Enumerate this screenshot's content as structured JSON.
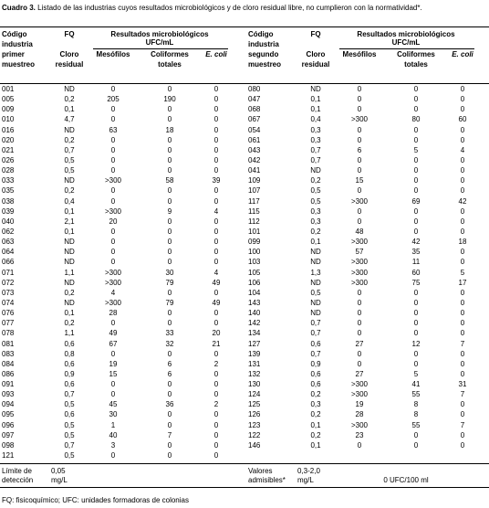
{
  "title": {
    "label": "Cuadro 3.",
    "text": "Listado de las industrias cuyos resultados microbiológicos y de cloro residual libre, no cumplieron con la normatividad*."
  },
  "left": {
    "code_header": [
      "Código",
      "industria",
      "primer",
      "muestreo"
    ],
    "fq": "FQ",
    "results": "Resultados microbiológicos",
    "unit": "UFC/mL",
    "cloro": [
      "Cloro",
      "residual"
    ],
    "meso": "Mesófilos",
    "coli": [
      "Coliformes",
      "totales"
    ],
    "ecoli": "E. coli",
    "rows": [
      [
        "001",
        "ND",
        "0",
        "0",
        "0"
      ],
      [
        "005",
        "0,2",
        "205",
        "190",
        "0"
      ],
      [
        "009",
        "0,1",
        "0",
        "0",
        "0"
      ],
      [
        "010",
        "4,7",
        "0",
        "0",
        "0"
      ],
      [
        "016",
        "ND",
        "63",
        "18",
        "0"
      ],
      [
        "020",
        "0,2",
        "0",
        "0",
        "0"
      ],
      [
        "021",
        "0,7",
        "0",
        "0",
        "0"
      ],
      [
        "026",
        "0,5",
        "0",
        "0",
        "0"
      ],
      [
        "028",
        "0,5",
        "0",
        "0",
        "0"
      ],
      [
        "033",
        "ND",
        ">300",
        "58",
        "39"
      ],
      [
        "035",
        "0,2",
        "0",
        "0",
        "0"
      ],
      [
        "038",
        "0,4",
        "0",
        "0",
        "0"
      ],
      [
        "039",
        "0,1",
        ">300",
        "9",
        "4"
      ],
      [
        "040",
        "2,1",
        "20",
        "0",
        "0"
      ],
      [
        "062",
        "0,1",
        "0",
        "0",
        "0"
      ],
      [
        "063",
        "ND",
        "0",
        "0",
        "0"
      ],
      [
        "064",
        "ND",
        "0",
        "0",
        "0"
      ],
      [
        "066",
        "ND",
        "0",
        "0",
        "0"
      ],
      [
        "071",
        "1,1",
        ">300",
        "30",
        "4"
      ],
      [
        "072",
        "ND",
        ">300",
        "79",
        "49"
      ],
      [
        "073",
        "0,2",
        "4",
        "0",
        "0"
      ],
      [
        "074",
        "ND",
        ">300",
        "79",
        "49"
      ],
      [
        "076",
        "0,1",
        "28",
        "0",
        "0"
      ],
      [
        "077",
        "0,2",
        "0",
        "0",
        "0"
      ],
      [
        "078",
        "1,1",
        "49",
        "33",
        "20"
      ],
      [
        "081",
        "0,6",
        "67",
        "32",
        "21"
      ],
      [
        "083",
        "0,8",
        "0",
        "0",
        "0"
      ],
      [
        "084",
        "0,6",
        "19",
        "6",
        "2"
      ],
      [
        "086",
        "0,9",
        "15",
        "6",
        "0"
      ],
      [
        "091",
        "0,6",
        "0",
        "0",
        "0"
      ],
      [
        "093",
        "0,7",
        "0",
        "0",
        "0"
      ],
      [
        "094",
        "0,5",
        "45",
        "36",
        "2"
      ],
      [
        "095",
        "0,6",
        "30",
        "0",
        "0"
      ],
      [
        "096",
        "0,5",
        "1",
        "0",
        "0"
      ],
      [
        "097",
        "0,5",
        "40",
        "7",
        "0"
      ],
      [
        "098",
        "0,7",
        "3",
        "0",
        "0"
      ],
      [
        "121",
        "0,5",
        "0",
        "0",
        "0"
      ]
    ],
    "footer": {
      "label": [
        "Límite de",
        "detección"
      ],
      "value": [
        "0,05",
        "mg/L"
      ]
    }
  },
  "right": {
    "code_header": [
      "Código",
      "industria",
      "segundo",
      "muestreo"
    ],
    "fq": "FQ",
    "results": "Resultados microbiológicos",
    "unit": "UFC/mL",
    "cloro": [
      "Cloro",
      "residual"
    ],
    "meso": "Mesófilos",
    "coli": [
      "Coliformes",
      "totales"
    ],
    "ecoli": "E. coli",
    "rows": [
      [
        "080",
        "ND",
        "0",
        "0",
        "0"
      ],
      [
        "047",
        "0,1",
        "0",
        "0",
        "0"
      ],
      [
        "068",
        "0,1",
        "0",
        "0",
        "0"
      ],
      [
        "067",
        "0,4",
        ">300",
        "80",
        "60"
      ],
      [
        "054",
        "0,3",
        "0",
        "0",
        "0"
      ],
      [
        "061",
        "0,3",
        "0",
        "0",
        "0"
      ],
      [
        "043",
        "0,7",
        "6",
        "5",
        "4"
      ],
      [
        "042",
        "0,7",
        "0",
        "0",
        "0"
      ],
      [
        "041",
        "ND",
        "0",
        "0",
        "0"
      ],
      [
        "109",
        "0,2",
        "15",
        "0",
        "0"
      ],
      [
        "107",
        "0,5",
        "0",
        "0",
        "0"
      ],
      [
        "117",
        "0,5",
        ">300",
        "69",
        "42"
      ],
      [
        "115",
        "0,3",
        "0",
        "0",
        "0"
      ],
      [
        "112",
        "0,3",
        "0",
        "0",
        "0"
      ],
      [
        "101",
        "0,2",
        "48",
        "0",
        "0"
      ],
      [
        "099",
        "0,1",
        ">300",
        "42",
        "18"
      ],
      [
        "100",
        "ND",
        "57",
        "35",
        "0"
      ],
      [
        "103",
        "ND",
        ">300",
        "11",
        "0"
      ],
      [
        "105",
        "1,3",
        ">300",
        "60",
        "5"
      ],
      [
        "106",
        "ND",
        ">300",
        "75",
        "17"
      ],
      [
        "104",
        "0,5",
        "0",
        "0",
        "0"
      ],
      [
        "143",
        "ND",
        "0",
        "0",
        "0"
      ],
      [
        "140",
        "ND",
        "0",
        "0",
        "0"
      ],
      [
        "142",
        "0,7",
        "0",
        "0",
        "0"
      ],
      [
        "134",
        "0,7",
        "0",
        "0",
        "0"
      ],
      [
        "127",
        "0,6",
        "27",
        "12",
        "7"
      ],
      [
        "139",
        "0,7",
        "0",
        "0",
        "0"
      ],
      [
        "131",
        "0,9",
        "0",
        "0",
        "0"
      ],
      [
        "132",
        "0,6",
        "27",
        "5",
        "0"
      ],
      [
        "130",
        "0,6",
        ">300",
        "41",
        "31"
      ],
      [
        "124",
        "0,2",
        ">300",
        "55",
        "7"
      ],
      [
        "125",
        "0,3",
        "19",
        "8",
        "0"
      ],
      [
        "126",
        "0,2",
        "28",
        "8",
        "0"
      ],
      [
        "123",
        "0,1",
        ">300",
        "55",
        "7"
      ],
      [
        "122",
        "0,2",
        "23",
        "0",
        "0"
      ],
      [
        "146",
        "0,1",
        "0",
        "0",
        "0"
      ]
    ],
    "footer": {
      "label": [
        "Valores",
        "admisibles*"
      ],
      "value": [
        "0,3-2,0",
        "mg/L"
      ],
      "micro": "0 UFC/100 ml"
    }
  },
  "footnote": "FQ: fisicoquímico; UFC: unidades formadoras de colonias"
}
